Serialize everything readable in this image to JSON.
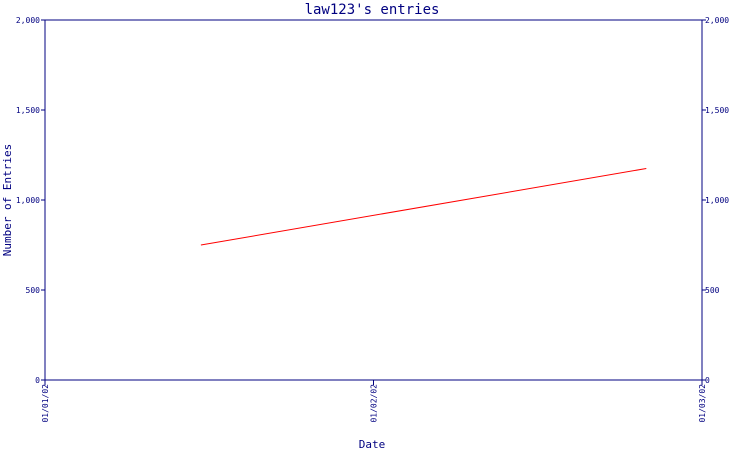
{
  "chart_data": {
    "type": "line",
    "title": "law123's entries",
    "xlabel": "Date",
    "ylabel": "Number of Entries",
    "x_ticks": [
      "01/01/02",
      "01/02/02",
      "01/03/02"
    ],
    "y_ticks": [
      "0",
      "500",
      "1,000",
      "1,500",
      "2,000"
    ],
    "xlim": [
      "2002-01-01",
      "2002-03-01"
    ],
    "ylim": [
      0,
      2000
    ],
    "series": [
      {
        "color": "#ff0000",
        "points": [
          {
            "x": "2002-01-15",
            "y": 750
          },
          {
            "x": "2002-02-24",
            "y": 1175
          }
        ]
      }
    ],
    "grid": false,
    "legend": "none",
    "right_axis": true
  },
  "colors": {
    "axis": "#000080",
    "text": "#000080",
    "line": "#ff0000"
  }
}
